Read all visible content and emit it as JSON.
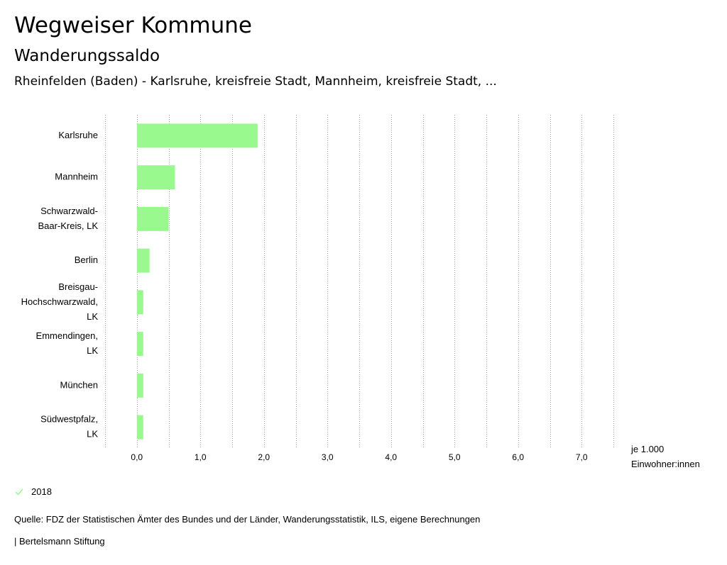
{
  "header": {
    "title": "Wegweiser Kommune",
    "subtitle": "Wanderungssaldo",
    "subtitle2": "Rheinfelden (Baden) - Karlsruhe, kreisfreie Stadt, Mannheim, kreisfreie Stadt, ..."
  },
  "legend": {
    "label": "2018",
    "color": "#99f98e"
  },
  "footer": {
    "source": "Quelle: FDZ der Statistischen Ämter des Bundes und der Länder, Wanderungsstatistik, ILS, eigene Berechnungen",
    "brand": "| Bertelsmann Stiftung"
  },
  "chart_data": {
    "type": "bar",
    "orientation": "horizontal",
    "categories": [
      [
        "Karlsruhe"
      ],
      [
        "Mannheim"
      ],
      [
        "Schwarzwald-",
        "Baar-Kreis, LK"
      ],
      [
        "Berlin"
      ],
      [
        "Breisgau-",
        "Hochschwarzwald,",
        "LK"
      ],
      [
        "Emmendingen,",
        "LK"
      ],
      [
        "München"
      ],
      [
        "Südwestpfalz,",
        "LK"
      ]
    ],
    "series": [
      {
        "name": "2018",
        "values": [
          1.9,
          0.6,
          0.5,
          0.2,
          0.1,
          0.1,
          0.1,
          0.1
        ],
        "color": "#99f98e"
      }
    ],
    "xlim": [
      -0.5,
      7.5
    ],
    "xticks": [
      0,
      1,
      2,
      3,
      4,
      5,
      6,
      7
    ],
    "xtick_labels": [
      "0,0",
      "1,0",
      "2,0",
      "3,0",
      "4,0",
      "5,0",
      "6,0",
      "7,0"
    ],
    "unit_label": [
      "je 1.000",
      "Einwohner:innen"
    ],
    "grid": "vertical-dotted",
    "legend_position": "bottom-left"
  }
}
